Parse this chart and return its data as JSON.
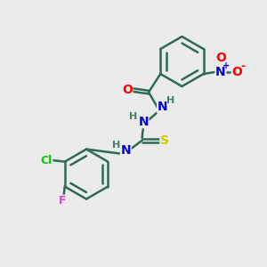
{
  "bg_color": "#ebebeb",
  "bond_color": "#2d6b55",
  "bond_width": 1.8,
  "atom_colors": {
    "O": "#ff0000",
    "N": "#0000dd",
    "S": "#cccc00",
    "Cl": "#00cc00",
    "F": "#dd44cc",
    "H": "#4a7a6a"
  },
  "font_size_main": 10,
  "font_size_small": 8,
  "fig_width": 3.0,
  "fig_height": 3.0,
  "dpi": 100
}
